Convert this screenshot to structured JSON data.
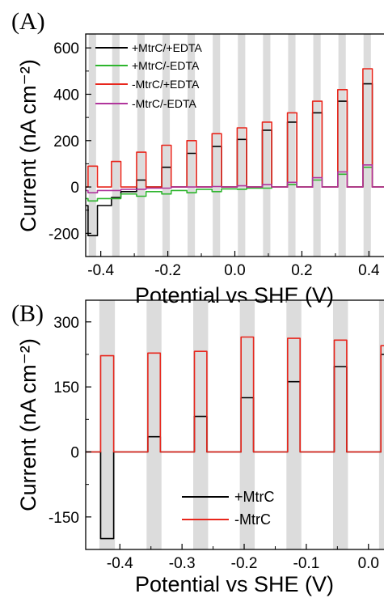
{
  "chart_data": [
    {
      "panel_label": "(A)",
      "type": "line",
      "xlabel": "Potential vs SHE (V)",
      "ylabel": "Current (nA cm⁻²)",
      "xlim": [
        -0.445,
        0.445
      ],
      "ylim": [
        -300,
        660
      ],
      "x_ticks": [
        -0.4,
        -0.2,
        0.0,
        0.2,
        0.4
      ],
      "x_tick_labels": [
        "-0.4",
        "-0.2",
        "0.0",
        "0.2",
        "0.4"
      ],
      "y_ticks": [
        -200,
        0,
        200,
        400,
        600
      ],
      "y_tick_labels": [
        "-200",
        "0",
        "200",
        "400",
        "600"
      ],
      "light_on_bands": [
        [
          -0.436,
          -0.414
        ],
        [
          -0.366,
          -0.344
        ],
        [
          -0.291,
          -0.269
        ],
        [
          -0.216,
          -0.194
        ],
        [
          -0.141,
          -0.119
        ],
        [
          -0.066,
          -0.044
        ],
        [
          0.009,
          0.031
        ],
        [
          0.084,
          0.106
        ],
        [
          0.159,
          0.181
        ],
        [
          0.234,
          0.256
        ],
        [
          0.309,
          0.331
        ],
        [
          0.384,
          0.406
        ],
        [
          0.459,
          0.481
        ]
      ],
      "grid": false,
      "legend_position": "top-left",
      "series": [
        {
          "name": "+MtrC/+EDTA",
          "color": "#000000",
          "steps": [
            {
              "start": -0.438,
              "end": -0.41,
              "light": -210,
              "dark": -80
            },
            {
              "start": -0.368,
              "end": -0.34,
              "light": -45,
              "dark": -20
            },
            {
              "start": -0.293,
              "end": -0.265,
              "light": 30,
              "dark": 0
            },
            {
              "start": -0.218,
              "end": -0.19,
              "light": 85,
              "dark": 0
            },
            {
              "start": -0.143,
              "end": -0.115,
              "light": 145,
              "dark": 0
            },
            {
              "start": -0.068,
              "end": -0.04,
              "light": 175,
              "dark": 0
            },
            {
              "start": 0.007,
              "end": 0.035,
              "light": 205,
              "dark": 0
            },
            {
              "start": 0.082,
              "end": 0.11,
              "light": 245,
              "dark": 0
            },
            {
              "start": 0.157,
              "end": 0.185,
              "light": 280,
              "dark": 0
            },
            {
              "start": 0.232,
              "end": 0.26,
              "light": 320,
              "dark": 0
            },
            {
              "start": 0.307,
              "end": 0.335,
              "light": 370,
              "dark": 0
            },
            {
              "start": 0.382,
              "end": 0.41,
              "light": 445,
              "dark": 0
            }
          ]
        },
        {
          "name": "+MtrC/-EDTA",
          "color": "#2db52d",
          "steps": [
            {
              "start": -0.438,
              "end": -0.41,
              "light": -60,
              "dark": -50
            },
            {
              "start": -0.368,
              "end": -0.34,
              "light": -50,
              "dark": -30
            },
            {
              "start": -0.293,
              "end": -0.265,
              "light": -40,
              "dark": -20
            },
            {
              "start": -0.218,
              "end": -0.19,
              "light": -30,
              "dark": -15
            },
            {
              "start": -0.143,
              "end": -0.115,
              "light": -25,
              "dark": -10
            },
            {
              "start": -0.068,
              "end": -0.04,
              "light": -20,
              "dark": -8
            },
            {
              "start": 0.007,
              "end": 0.035,
              "light": -10,
              "dark": -5
            },
            {
              "start": 0.082,
              "end": 0.11,
              "light": -5,
              "dark": 0
            },
            {
              "start": 0.157,
              "end": 0.185,
              "light": 10,
              "dark": 0
            },
            {
              "start": 0.232,
              "end": 0.26,
              "light": 30,
              "dark": 0
            },
            {
              "start": 0.307,
              "end": 0.335,
              "light": 55,
              "dark": 0
            },
            {
              "start": 0.382,
              "end": 0.41,
              "light": 85,
              "dark": 0
            }
          ]
        },
        {
          "name": "-MtrC/+EDTA",
          "color": "#e8261c",
          "steps": [
            {
              "start": -0.438,
              "end": -0.41,
              "light": 90,
              "dark": 0
            },
            {
              "start": -0.368,
              "end": -0.34,
              "light": 110,
              "dark": 0
            },
            {
              "start": -0.293,
              "end": -0.265,
              "light": 150,
              "dark": 0
            },
            {
              "start": -0.218,
              "end": -0.19,
              "light": 180,
              "dark": 0
            },
            {
              "start": -0.143,
              "end": -0.115,
              "light": 200,
              "dark": 0
            },
            {
              "start": -0.068,
              "end": -0.04,
              "light": 230,
              "dark": 0
            },
            {
              "start": 0.007,
              "end": 0.035,
              "light": 255,
              "dark": 0
            },
            {
              "start": 0.082,
              "end": 0.11,
              "light": 280,
              "dark": 0
            },
            {
              "start": 0.157,
              "end": 0.185,
              "light": 320,
              "dark": 0
            },
            {
              "start": 0.232,
              "end": 0.26,
              "light": 370,
              "dark": 0
            },
            {
              "start": 0.307,
              "end": 0.335,
              "light": 420,
              "dark": 0
            },
            {
              "start": 0.382,
              "end": 0.41,
              "light": 510,
              "dark": 0
            }
          ]
        },
        {
          "name": "-MtrC/-EDTA",
          "color": "#b0359c",
          "steps": [
            {
              "start": -0.438,
              "end": -0.41,
              "light": -25,
              "dark": -15
            },
            {
              "start": -0.368,
              "end": -0.34,
              "light": -15,
              "dark": -10
            },
            {
              "start": -0.293,
              "end": -0.265,
              "light": -10,
              "dark": -5
            },
            {
              "start": -0.218,
              "end": -0.19,
              "light": -5,
              "dark": 0
            },
            {
              "start": -0.143,
              "end": -0.115,
              "light": 0,
              "dark": 0
            },
            {
              "start": -0.068,
              "end": -0.04,
              "light": 2,
              "dark": 0
            },
            {
              "start": 0.007,
              "end": 0.035,
              "light": 5,
              "dark": 0
            },
            {
              "start": 0.082,
              "end": 0.11,
              "light": 10,
              "dark": 0
            },
            {
              "start": 0.157,
              "end": 0.185,
              "light": 20,
              "dark": 0
            },
            {
              "start": 0.232,
              "end": 0.26,
              "light": 40,
              "dark": 0
            },
            {
              "start": 0.307,
              "end": 0.335,
              "light": 65,
              "dark": 0
            },
            {
              "start": 0.382,
              "end": 0.41,
              "light": 95,
              "dark": 0
            }
          ]
        }
      ]
    },
    {
      "panel_label": "(B)",
      "type": "line",
      "xlabel": "Potential vs SHE (V)",
      "ylabel": "Current (nA cm⁻²)",
      "xlim": [
        -0.455,
        0.025
      ],
      "ylim": [
        -225,
        350
      ],
      "x_ticks": [
        -0.4,
        -0.3,
        -0.2,
        -0.1,
        0.0
      ],
      "x_tick_labels": [
        "-0.4",
        "-0.3",
        "-0.2",
        "-0.1",
        "0.0"
      ],
      "y_ticks": [
        -150,
        0,
        150,
        300
      ],
      "y_tick_labels": [
        "-150",
        "0",
        "150",
        "300"
      ],
      "light_on_bands": [
        [
          -0.433,
          -0.408
        ],
        [
          -0.357,
          -0.333
        ],
        [
          -0.282,
          -0.258
        ],
        [
          -0.207,
          -0.183
        ],
        [
          -0.132,
          -0.108
        ],
        [
          -0.057,
          -0.033
        ],
        [
          0.017,
          0.041
        ]
      ],
      "grid": false,
      "legend_position": "bottom-right",
      "series": [
        {
          "name": "+MtrC",
          "color": "#000000",
          "steps": [
            {
              "start": -0.431,
              "end": -0.41,
              "light": -200,
              "dark": 0
            },
            {
              "start": -0.355,
              "end": -0.335,
              "light": 35,
              "dark": 0
            },
            {
              "start": -0.28,
              "end": -0.26,
              "light": 82,
              "dark": 0
            },
            {
              "start": -0.205,
              "end": -0.185,
              "light": 125,
              "dark": 0
            },
            {
              "start": -0.13,
              "end": -0.11,
              "light": 162,
              "dark": 0
            },
            {
              "start": -0.055,
              "end": -0.035,
              "light": 197,
              "dark": 0
            },
            {
              "start": 0.02,
              "end": 0.04,
              "light": 225,
              "dark": 0
            }
          ]
        },
        {
          "name": "-MtrC",
          "color": "#e8261c",
          "steps": [
            {
              "start": -0.431,
              "end": -0.41,
              "light": 222,
              "dark": 0
            },
            {
              "start": -0.355,
              "end": -0.335,
              "light": 228,
              "dark": 0
            },
            {
              "start": -0.28,
              "end": -0.26,
              "light": 232,
              "dark": 0
            },
            {
              "start": -0.205,
              "end": -0.185,
              "light": 265,
              "dark": 0
            },
            {
              "start": -0.13,
              "end": -0.11,
              "light": 262,
              "dark": 0
            },
            {
              "start": -0.055,
              "end": -0.035,
              "light": 258,
              "dark": 0
            },
            {
              "start": 0.02,
              "end": 0.04,
              "light": 245,
              "dark": 0
            }
          ]
        }
      ]
    }
  ]
}
